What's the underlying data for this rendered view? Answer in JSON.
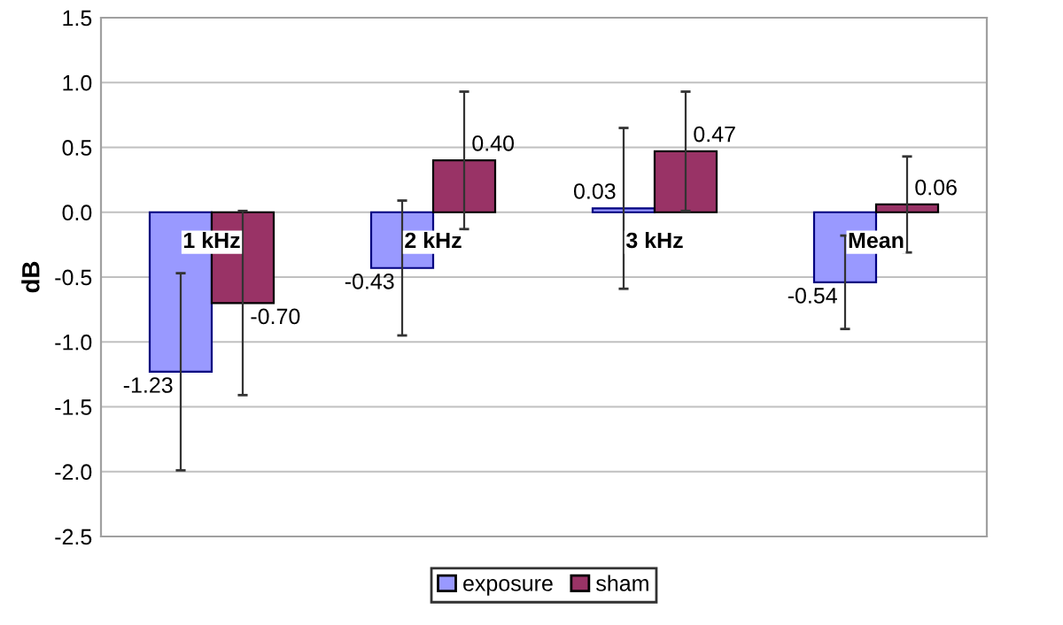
{
  "chart_data": {
    "type": "bar",
    "ylabel": "dB",
    "categories": [
      "1 kHz",
      "2 kHz",
      "3 kHz",
      "Mean"
    ],
    "series": [
      {
        "name": "exposure",
        "color": "#9999ff",
        "values": [
          -1.23,
          -0.43,
          0.03,
          -0.54
        ],
        "errors": [
          0.76,
          0.52,
          0.62,
          0.36
        ],
        "value_labels": [
          "-1.23",
          "-0.43",
          "0.03",
          "-0.54"
        ]
      },
      {
        "name": "sham",
        "color": "#993366",
        "values": [
          -0.7,
          0.4,
          0.47,
          0.06
        ],
        "errors": [
          0.71,
          0.53,
          0.46,
          0.37
        ],
        "value_labels": [
          "-0.70",
          "0.40",
          "0.47",
          "0.06"
        ]
      }
    ],
    "ylim": [
      -2.5,
      1.5
    ],
    "yticks": [
      {
        "value": -2.5,
        "label": "-2.5"
      },
      {
        "value": -2.0,
        "label": "-2.0"
      },
      {
        "value": -1.5,
        "label": "-1.5"
      },
      {
        "value": -1.0,
        "label": "-1.0"
      },
      {
        "value": -0.5,
        "label": "-0.5"
      },
      {
        "value": 0,
        "label": "0.0"
      },
      {
        "value": 0.5,
        "label": "0.5"
      },
      {
        "value": 1.0,
        "label": "1.0"
      },
      {
        "value": 1.5,
        "label": "1.5"
      }
    ],
    "grid": "y",
    "legend": "bottom"
  }
}
